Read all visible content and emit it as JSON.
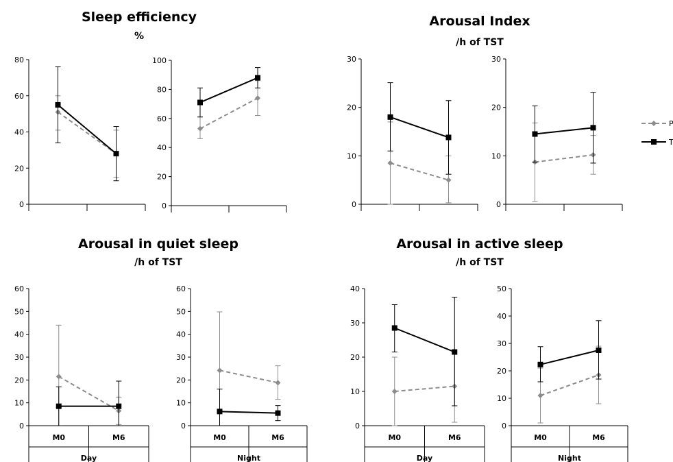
{
  "panels": [
    {
      "title": "Sleep efficiency",
      "subtitle": "%"
    },
    {
      "title": "Arousal Index",
      "subtitle": "/h of TST"
    },
    {
      "title": "Arousal in quiet sleep",
      "subtitle": "/h of TST"
    },
    {
      "title": "Arousal in active sleep",
      "subtitle": "/h of TST"
    }
  ],
  "legend": {
    "entries": [
      {
        "series": "P",
        "label": "P",
        "color": "#8c8c8c",
        "style": "dashed",
        "marker": "diamond"
      },
      {
        "series": "T",
        "label": "T",
        "color": "#000000",
        "style": "solid",
        "marker": "square"
      }
    ]
  },
  "chart_data": [
    {
      "type": "line",
      "panel": 0,
      "categories": [
        "",
        ""
      ],
      "ylim": [
        0,
        80
      ],
      "yticks": [
        0,
        20,
        40,
        60,
        80
      ],
      "grid": false,
      "series": [
        {
          "key": "P",
          "values": [
            51,
            28
          ],
          "err_low": [
            41,
            15
          ],
          "err_high": [
            60,
            41
          ]
        },
        {
          "key": "T",
          "values": [
            55,
            28
          ],
          "err_low": [
            34,
            13
          ],
          "err_high": [
            76,
            43
          ]
        }
      ]
    },
    {
      "type": "line",
      "panel": 0,
      "categories": [
        "",
        ""
      ],
      "ylim": [
        0,
        100
      ],
      "yticks": [
        0,
        20,
        40,
        60,
        80,
        100
      ],
      "grid": false,
      "series": [
        {
          "key": "P",
          "values": [
            53,
            74
          ],
          "err_low": [
            46,
            62
          ],
          "err_high": [
            61,
            86
          ]
        },
        {
          "key": "T",
          "values": [
            71,
            88
          ],
          "err_low": [
            61,
            81
          ],
          "err_high": [
            81,
            95
          ]
        }
      ]
    },
    {
      "type": "line",
      "panel": 1,
      "categories": [
        "",
        ""
      ],
      "ylim": [
        0,
        30
      ],
      "yticks": [
        0,
        10,
        20,
        30
      ],
      "grid": false,
      "series": [
        {
          "key": "P",
          "values": [
            8.5,
            5
          ],
          "err_low": [
            0,
            0.3
          ],
          "err_high": [
            17,
            10
          ]
        },
        {
          "key": "T",
          "values": [
            18,
            13.8
          ],
          "err_low": [
            11,
            6.2
          ],
          "err_high": [
            25.1,
            21.4
          ]
        }
      ]
    },
    {
      "type": "line",
      "panel": 1,
      "categories": [
        "",
        ""
      ],
      "ylim": [
        0,
        30
      ],
      "yticks": [
        0,
        10,
        20,
        30
      ],
      "grid": false,
      "series": [
        {
          "key": "P",
          "values": [
            8.7,
            10.2
          ],
          "err_low": [
            0.6,
            6.2
          ],
          "err_high": [
            16.8,
            14.2
          ]
        },
        {
          "key": "T",
          "values": [
            14.5,
            15.8
          ],
          "err_low": [
            8.7,
            8.5
          ],
          "err_high": [
            20.3,
            23.1
          ]
        }
      ]
    },
    {
      "type": "line",
      "panel": 2,
      "group_label": "Day",
      "categories": [
        "M0",
        "M6"
      ],
      "ylim": [
        0,
        60
      ],
      "yticks": [
        0,
        10,
        20,
        30,
        40,
        50,
        60
      ],
      "grid": false,
      "series": [
        {
          "key": "P",
          "values": [
            21.5,
            6.5
          ],
          "err_low": [
            0,
            0.5
          ],
          "err_high": [
            44,
            12.5
          ]
        },
        {
          "key": "T",
          "values": [
            8.5,
            8.5
          ],
          "err_low": [
            0,
            0
          ],
          "err_high": [
            17,
            19.5
          ]
        }
      ]
    },
    {
      "type": "line",
      "panel": 2,
      "group_label": "Night",
      "categories": [
        "M0",
        "M6"
      ],
      "ylim": [
        0,
        60
      ],
      "yticks": [
        0,
        10,
        20,
        30,
        40,
        50,
        60
      ],
      "grid": false,
      "series": [
        {
          "key": "P",
          "values": [
            24.2,
            18.8
          ],
          "err_low": [
            0,
            11.5
          ],
          "err_high": [
            49.8,
            26.2
          ]
        },
        {
          "key": "T",
          "values": [
            6.2,
            5.5
          ],
          "err_low": [
            0,
            2.2
          ],
          "err_high": [
            16,
            8.8
          ]
        }
      ]
    },
    {
      "type": "line",
      "panel": 3,
      "group_label": "Day",
      "categories": [
        "M0",
        "M6"
      ],
      "ylim": [
        0,
        40
      ],
      "yticks": [
        0,
        10,
        20,
        30,
        40
      ],
      "grid": false,
      "series": [
        {
          "key": "P",
          "values": [
            10,
            11.5
          ],
          "err_low": [
            0,
            1
          ],
          "err_high": [
            20,
            22
          ]
        },
        {
          "key": "T",
          "values": [
            28.5,
            21.5
          ],
          "err_low": [
            21.5,
            5.8
          ],
          "err_high": [
            35.3,
            37.5
          ]
        }
      ]
    },
    {
      "type": "line",
      "panel": 3,
      "group_label": "Night",
      "categories": [
        "M0",
        "M6"
      ],
      "ylim": [
        0,
        50
      ],
      "yticks": [
        0,
        10,
        20,
        30,
        40,
        50
      ],
      "grid": false,
      "series": [
        {
          "key": "P",
          "values": [
            11,
            18.5
          ],
          "err_low": [
            1,
            8
          ],
          "err_high": [
            21,
            29
          ]
        },
        {
          "key": "T",
          "values": [
            22.3,
            27.5
          ],
          "err_low": [
            16,
            17
          ],
          "err_high": [
            28.8,
            38.3
          ]
        }
      ]
    }
  ]
}
